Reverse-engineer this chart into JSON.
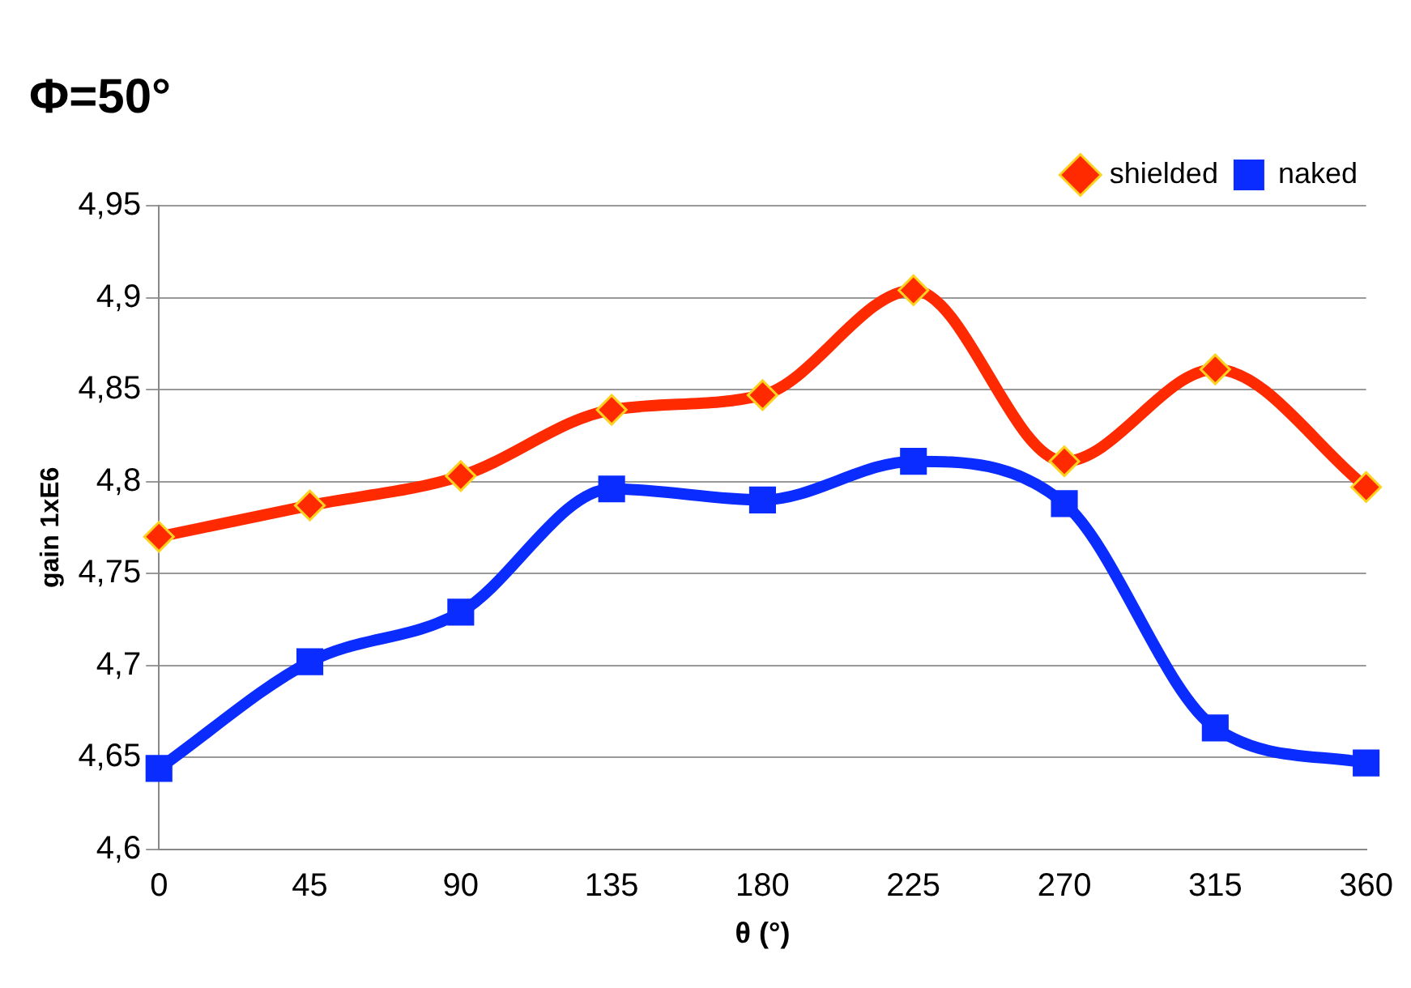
{
  "chart_data": {
    "type": "line",
    "title": "Φ=50°",
    "xlabel": "θ (°)",
    "ylabel": "gain 1xE6",
    "categories": [
      "0",
      "45",
      "90",
      "135",
      "180",
      "225",
      "270",
      "315",
      "360"
    ],
    "series": [
      {
        "name": "shielded",
        "color": "#ff2a00",
        "marker": "diamond",
        "values": [
          4.77,
          4.787,
          4.803,
          4.839,
          4.847,
          4.904,
          4.811,
          4.861,
          4.797
        ]
      },
      {
        "name": "naked",
        "color": "#0a2cff",
        "marker": "square",
        "values": [
          4.644,
          4.702,
          4.729,
          4.796,
          4.79,
          4.811,
          4.788,
          4.666,
          4.647
        ]
      }
    ],
    "ylim": [
      4.6,
      4.95
    ],
    "yticks": [
      {
        "value": 4.6,
        "label": "4,6"
      },
      {
        "value": 4.65,
        "label": "4,65"
      },
      {
        "value": 4.7,
        "label": "4,7"
      },
      {
        "value": 4.75,
        "label": "4,75"
      },
      {
        "value": 4.8,
        "label": "4,8"
      },
      {
        "value": 4.85,
        "label": "4,85"
      },
      {
        "value": 4.9,
        "label": "4,9"
      },
      {
        "value": 4.95,
        "label": "4,95"
      }
    ],
    "grid": "y",
    "legend": "top right"
  }
}
